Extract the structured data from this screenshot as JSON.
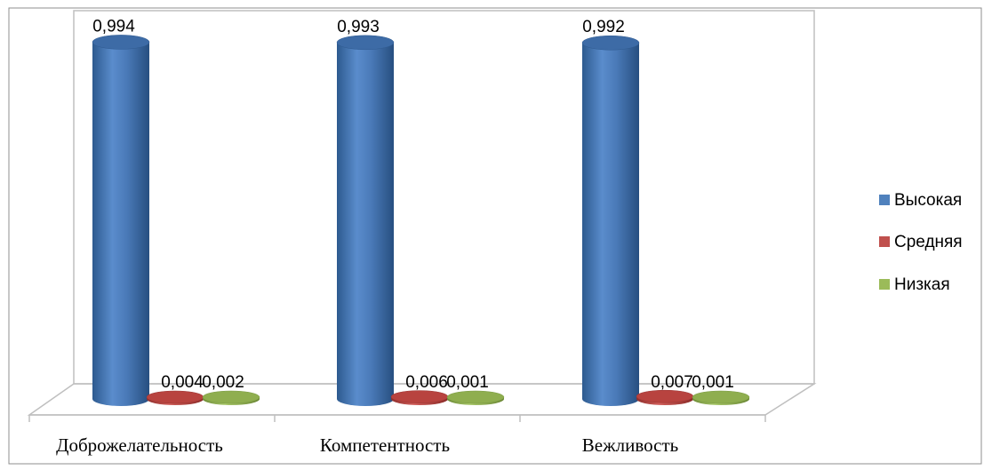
{
  "chart_data": {
    "type": "bar",
    "style": "3d-cylinder",
    "categories": [
      "Доброжелательность",
      "Компетентность",
      "Вежливость"
    ],
    "series": [
      {
        "name": "Высокая",
        "color": "#4F81BD",
        "values": [
          0.994,
          0.993,
          0.992
        ],
        "labels": [
          "0,994",
          "0,993",
          "0,992"
        ]
      },
      {
        "name": "Средняя",
        "color": "#C0504D",
        "values": [
          0.004,
          0.006,
          0.007
        ],
        "labels": [
          "0,004",
          "0,006",
          "0,007"
        ]
      },
      {
        "name": "Низкая",
        "color": "#9BBB59",
        "values": [
          0.002,
          0.001,
          0.001
        ],
        "labels": [
          "0,002",
          "0,001",
          "0,001"
        ]
      }
    ],
    "ylim": [
      0,
      1
    ],
    "grid": false,
    "legend_position": "right"
  }
}
